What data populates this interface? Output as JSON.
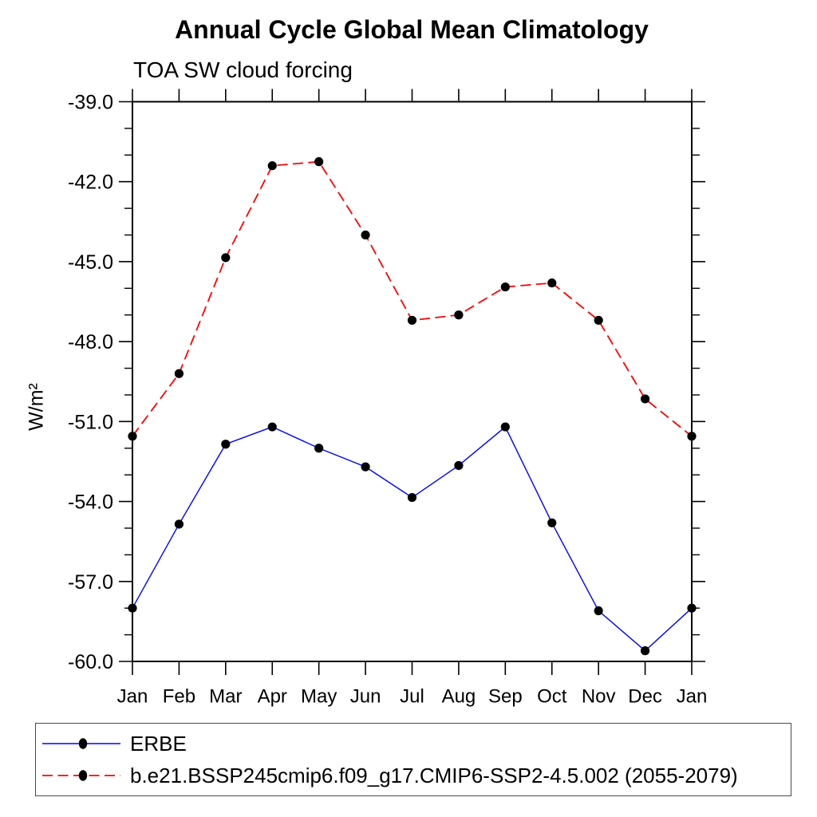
{
  "page": {
    "background": "#ffffff",
    "text_color": "#000000"
  },
  "chart_data": {
    "type": "line",
    "title": "Annual Cycle Global Mean Climatology",
    "subtitle": "TOA SW cloud forcing",
    "ylabel": "W/m²",
    "xlabel": "",
    "categories": [
      "Jan",
      "Feb",
      "Mar",
      "Apr",
      "May",
      "Jun",
      "Jul",
      "Aug",
      "Sep",
      "Oct",
      "Nov",
      "Dec",
      "Jan"
    ],
    "ylim": [
      -60.0,
      -39.0
    ],
    "yticks_major": [
      -39.0,
      -42.0,
      -45.0,
      -48.0,
      -51.0,
      -54.0,
      -57.0,
      -60.0
    ],
    "ytick_labels": [
      "-39.0",
      "-42.0",
      "-45.0",
      "-48.0",
      "-51.0",
      "-54.0",
      "-57.0",
      "-60.0"
    ],
    "ytick_minor_step": 1.0,
    "grid": false,
    "legend_position": "bottom",
    "series": [
      {
        "name": "ERBE",
        "color": "#0000ff",
        "line_style": "solid",
        "marker": "filled-circle",
        "marker_color": "#000000",
        "values": [
          -58.0,
          -54.85,
          -51.85,
          -51.2,
          -52.0,
          -52.7,
          -53.85,
          -52.65,
          -51.2,
          -54.8,
          -58.1,
          -59.6,
          -58.0
        ]
      },
      {
        "name": "b.e21.BSSP245cmip6.f09_g17.CMIP6-SSP2-4.5.002 (2055-2079)",
        "color": "#ff0000",
        "line_style": "dashed",
        "marker": "filled-circle",
        "marker_color": "#000000",
        "values": [
          -51.55,
          -49.2,
          -44.85,
          -41.4,
          -41.25,
          -44.0,
          -47.2,
          -47.0,
          -45.95,
          -45.8,
          -47.2,
          -50.15,
          -51.55
        ]
      }
    ]
  }
}
